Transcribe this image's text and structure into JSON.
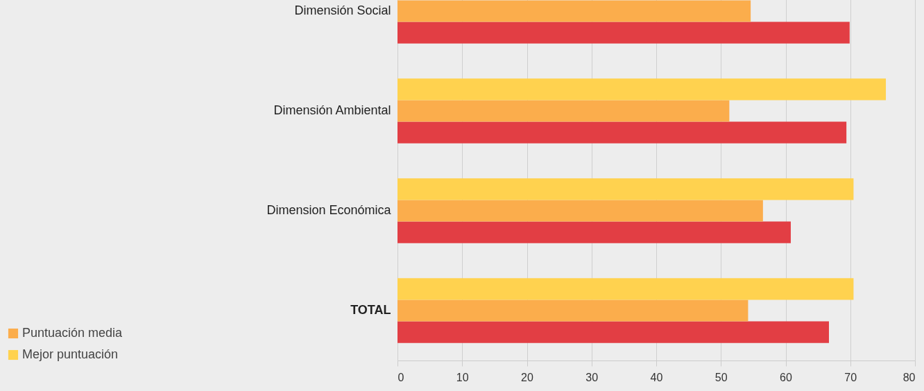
{
  "chart_data": {
    "type": "bar",
    "orientation": "horizontal",
    "categories": [
      "Dimensión Social",
      "Dimensión Ambiental",
      "Dimension Económica",
      "TOTAL"
    ],
    "series": [
      {
        "color": "#e23e44",
        "values": [
          69.9,
          69.4,
          60.8,
          66.7
        ]
      },
      {
        "name": "Puntuación media",
        "color": "#fbad4c",
        "values": [
          54.6,
          51.3,
          56.5,
          54.2
        ]
      },
      {
        "name": "Mejor puntuación",
        "color": "#ffd24f",
        "values": [
          null,
          75.5,
          70.5,
          70.5
        ]
      }
    ],
    "xlim": [
      0,
      80
    ],
    "xticks": [
      0,
      10,
      20,
      30,
      40,
      50,
      60,
      70,
      80
    ],
    "grid": "x",
    "legend": "bottom left"
  }
}
